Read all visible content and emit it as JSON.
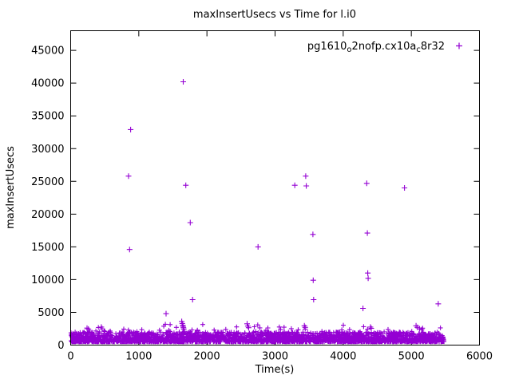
{
  "page": {
    "background": "#ffffff"
  },
  "chart_data": {
    "type": "scatter",
    "title": "maxInsertUsecs vs Time for l.i0",
    "xlabel": "Time(s)",
    "ylabel": "maxInsertUsecs",
    "xlim": [
      0,
      6000
    ],
    "ylim": [
      0,
      48000
    ],
    "xticks": [
      0,
      1000,
      2000,
      3000,
      4000,
      5000,
      6000
    ],
    "yticks": [
      0,
      5000,
      10000,
      15000,
      20000,
      25000,
      30000,
      35000,
      40000,
      45000
    ],
    "grid": false,
    "legend_position": "top-right-inside",
    "marker": "+",
    "color": "#9400d3",
    "legend": {
      "label": "pg1610_o2nofp.cx10a_c8r32",
      "parts": [
        {
          "text": "pg1610",
          "sub": false
        },
        {
          "text": "o",
          "sub": true
        },
        {
          "text": "2nofp.cx10a",
          "sub": false
        },
        {
          "text": "c",
          "sub": true
        },
        {
          "text": "8r32",
          "sub": false
        }
      ]
    },
    "outliers": [
      [
        240,
        2600
      ],
      [
        260,
        2450
      ],
      [
        450,
        2750
      ],
      [
        462,
        2500
      ],
      [
        850,
        25800
      ],
      [
        865,
        14600
      ],
      [
        880,
        32900
      ],
      [
        1400,
        4800
      ],
      [
        1630,
        3600
      ],
      [
        1638,
        3300
      ],
      [
        1645,
        3050
      ],
      [
        1650,
        2850
      ],
      [
        1652,
        40200
      ],
      [
        1655,
        2650
      ],
      [
        1660,
        2450
      ],
      [
        1690,
        24400
      ],
      [
        1755,
        18700
      ],
      [
        1790,
        6950
      ],
      [
        2590,
        3250
      ],
      [
        2600,
        2900
      ],
      [
        2612,
        2650
      ],
      [
        2750,
        15000
      ],
      [
        3290,
        24400
      ],
      [
        3430,
        2950
      ],
      [
        3442,
        2700
      ],
      [
        3450,
        25800
      ],
      [
        3458,
        24300
      ],
      [
        3555,
        16900
      ],
      [
        3560,
        9900
      ],
      [
        3566,
        6950
      ],
      [
        4290,
        5600
      ],
      [
        4345,
        24700
      ],
      [
        4355,
        17100
      ],
      [
        4360,
        11000
      ],
      [
        4366,
        10200
      ],
      [
        4400,
        2750
      ],
      [
        4412,
        2550
      ],
      [
        4900,
        24000
      ],
      [
        5070,
        2950
      ],
      [
        5090,
        2700
      ],
      [
        5120,
        2500
      ],
      [
        5150,
        2350
      ],
      [
        5395,
        6300
      ]
    ],
    "baseline_band": {
      "seed": 7,
      "count": 2600,
      "x_min": 3,
      "x_max": 5480,
      "y_min": 500,
      "y_core_max": 2000,
      "fringe_chance": 0.08,
      "fringe_extra": 600,
      "rare_chance": 0.01,
      "rare_min": 2200,
      "rare_max": 3200
    }
  }
}
